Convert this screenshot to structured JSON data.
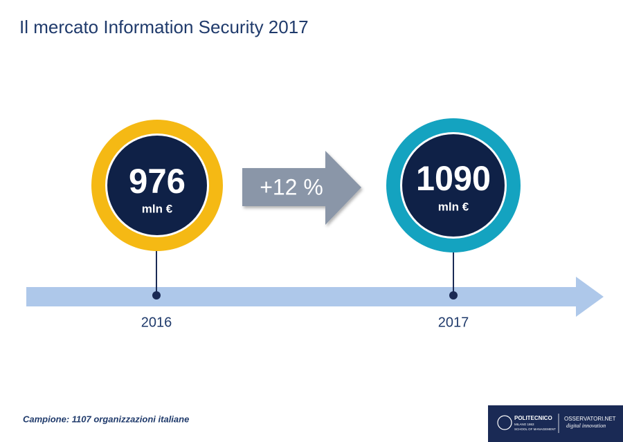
{
  "header": {
    "title": "Il mercato Information Security 2017"
  },
  "timeline": {
    "points": [
      {
        "year": "2016",
        "value": 976,
        "unit": "mln €"
      },
      {
        "year": "2017",
        "value": 1090,
        "unit": "mln €"
      }
    ],
    "growth": "+12 %"
  },
  "footer": {
    "note": "Campione: 1107 organizzazioni italiane",
    "logo": {
      "school": "POLITECNICO",
      "city": "MILANO 1863",
      "dept": "SCHOOL OF MANAGEMENT",
      "brand": "OSSERVATORI.NET",
      "tagline": "digital innovation"
    }
  }
}
